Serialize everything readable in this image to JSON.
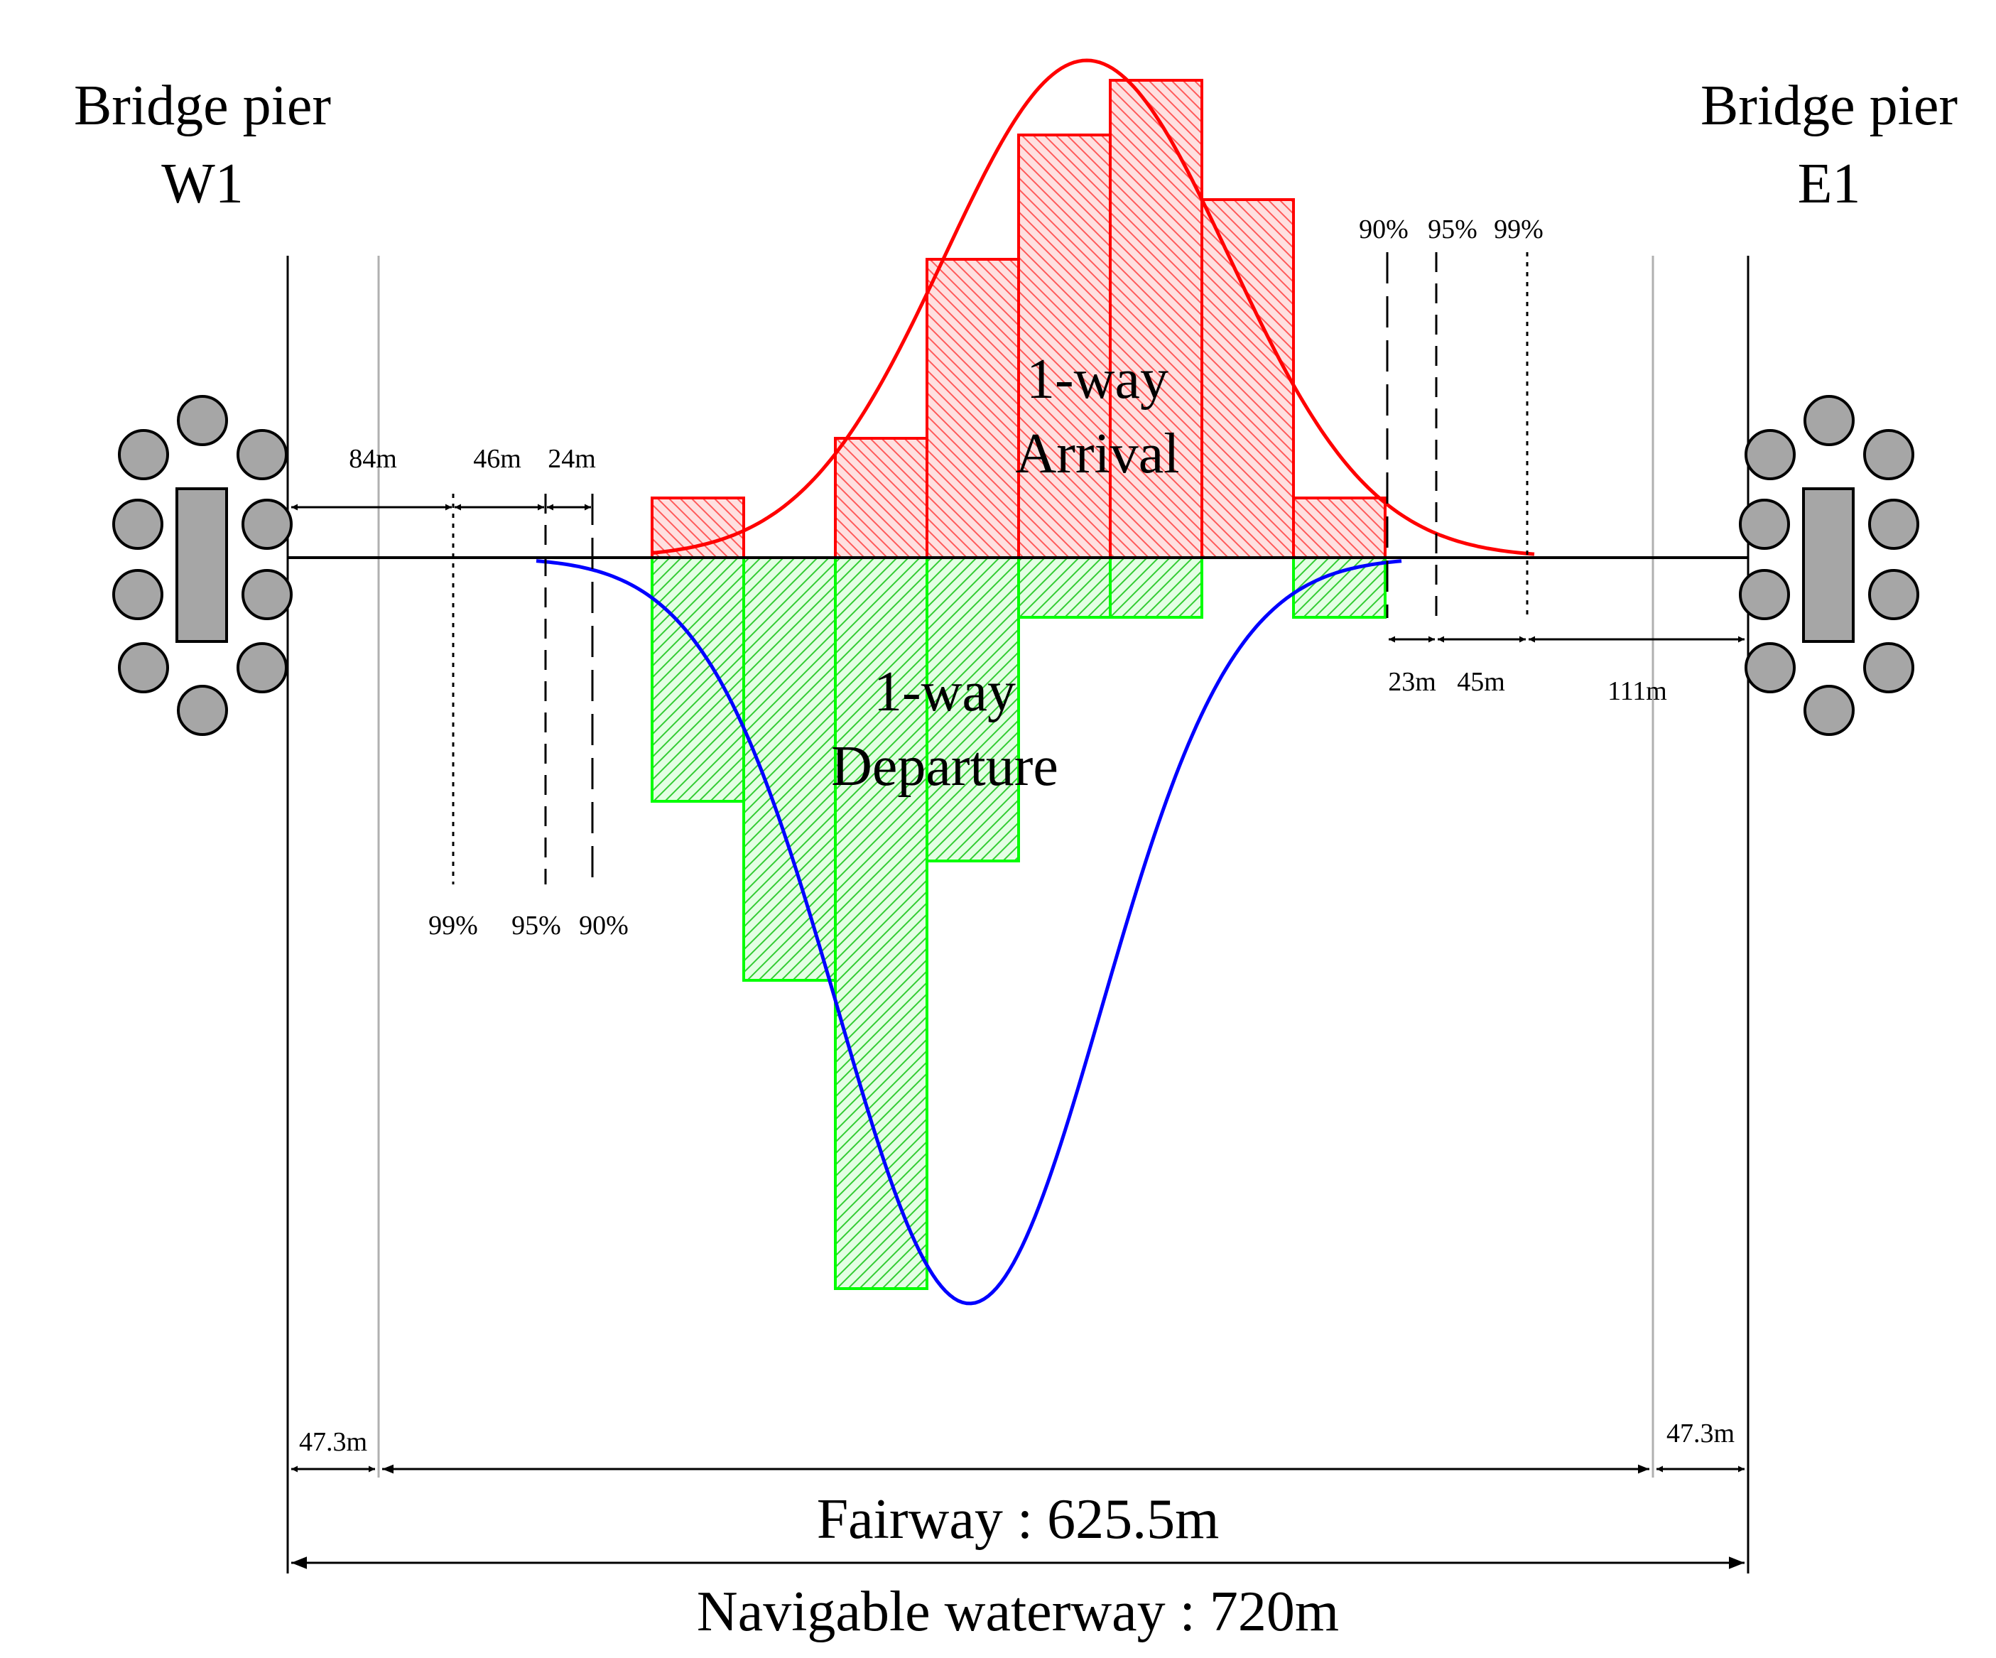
{
  "piers": {
    "west": {
      "line1": "Bridge pier",
      "line2": "W1"
    },
    "east": {
      "line1": "Bridge pier",
      "line2": "E1"
    }
  },
  "labels": {
    "arrival_line1": "1-way",
    "arrival_line2": "Arrival",
    "departure_line1": "1-way",
    "departure_line2": "Departure",
    "fairway": "Fairway : 625.5m",
    "waterway": "Navigable waterway : 720m"
  },
  "west_dimensions": {
    "d1": "84m",
    "d2": "46m",
    "d3": "24m",
    "side": "47.3m"
  },
  "east_dimensions": {
    "d1": "23m",
    "d2": "45m",
    "d3": "111m",
    "side": "47.3m"
  },
  "west_percentiles": {
    "p99": "99%",
    "p95": "95%",
    "p90": "90%"
  },
  "east_percentiles": {
    "p90": "90%",
    "p95": "95%",
    "p99": "99%"
  },
  "arrival_histogram": [
    0.12,
    0,
    0.24,
    0.6,
    0.85,
    0.96,
    0.72,
    0.12,
    0
  ],
  "departure_histogram": [
    0.49,
    0.85,
    1.47,
    0.61,
    0.12,
    0.12,
    0,
    0.12,
    0
  ],
  "colors": {
    "arrival": "#ff0000",
    "arrival_fill": "#ffd6d6",
    "departure_bar": "#00ff00",
    "departure_fill": "#ccffcc",
    "departure_curve": "#0000ff",
    "pier_fill": "#a6a6a6",
    "guide_line": "#b0b0b0"
  }
}
